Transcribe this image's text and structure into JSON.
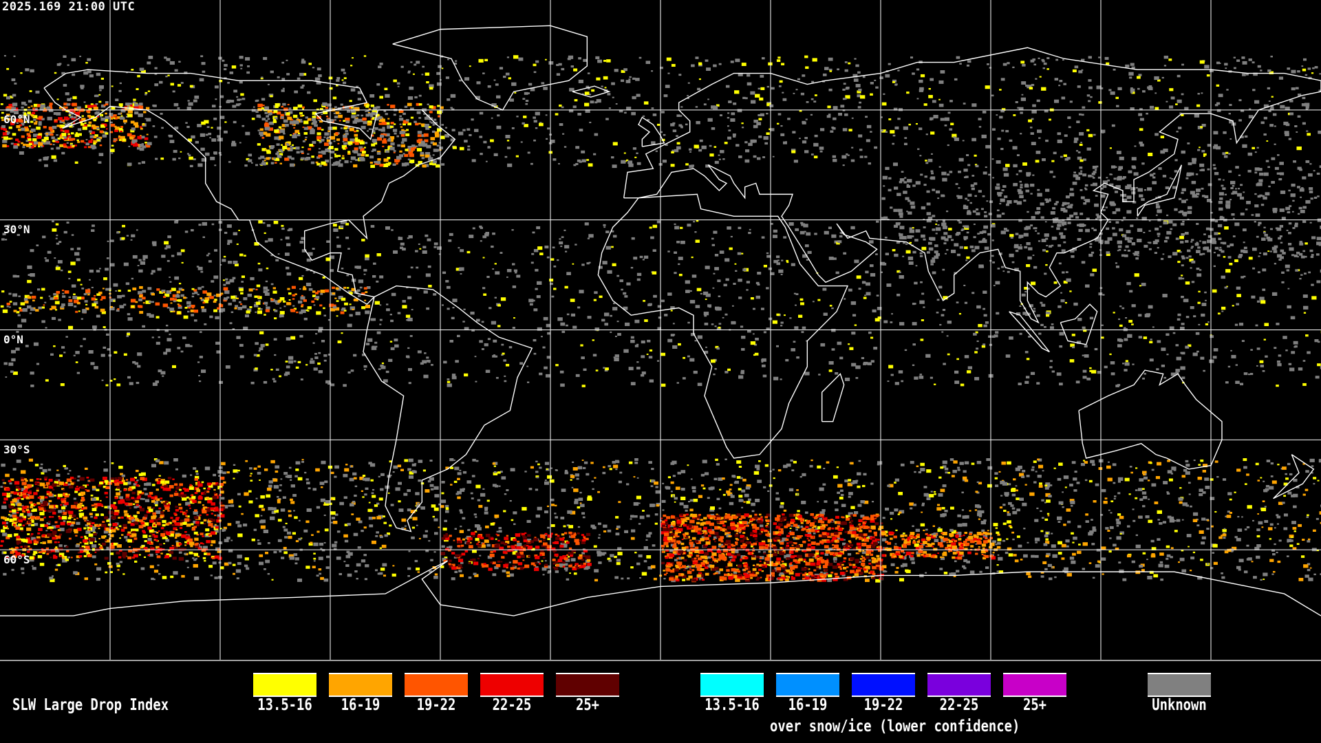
{
  "header": {
    "timestamp": "2025.169 21:00 UTC"
  },
  "lat_labels": [
    "60°N",
    "30°N",
    "0°N",
    "30°S",
    "60°S"
  ],
  "legend": {
    "title": "SLW Large Drop Index",
    "normal": [
      {
        "label": "13.5-16",
        "color": "#ffff00"
      },
      {
        "label": "16-19",
        "color": "#ffa500"
      },
      {
        "label": "19-22",
        "color": "#ff5500"
      },
      {
        "label": "22-25",
        "color": "#ee0000"
      },
      {
        "label": "25+",
        "color": "#600000"
      }
    ],
    "snow_ice": [
      {
        "label": "13.5-16",
        "color": "#00ffff"
      },
      {
        "label": "16-19",
        "color": "#0090ff"
      },
      {
        "label": "19-22",
        "color": "#0010ff"
      },
      {
        "label": "22-25",
        "color": "#7a00dd"
      },
      {
        "label": "25+",
        "color": "#c800c8"
      }
    ],
    "snow_ice_caption": "over snow/ice (lower confidence)",
    "unknown": {
      "label": "Unknown",
      "color": "#808080"
    }
  },
  "map": {
    "coastline_color": "#ffffff",
    "grid_color": "#ffffff",
    "background": "#000000"
  }
}
